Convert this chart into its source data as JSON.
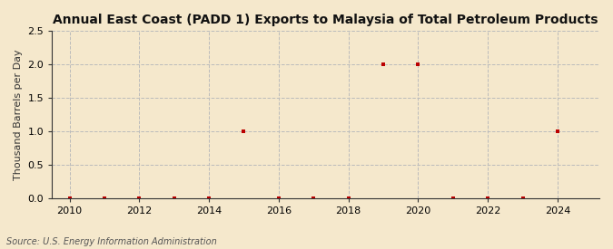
{
  "title": "Annual East Coast (PADD 1) Exports to Malaysia of Total Petroleum Products",
  "ylabel": "Thousand Barrels per Day",
  "source": "Source: U.S. Energy Information Administration",
  "background_color": "#f5e8cc",
  "years": [
    2010,
    2011,
    2012,
    2013,
    2014,
    2015,
    2016,
    2017,
    2018,
    2019,
    2020,
    2021,
    2022,
    2023,
    2024
  ],
  "values": [
    0.0,
    0.0,
    0.0,
    0.0,
    0.0,
    1.0,
    0.0,
    0.0,
    0.0,
    2.0,
    2.0,
    0.0,
    0.0,
    0.0,
    1.0
  ],
  "marker_color": "#bb0000",
  "marker_size": 3.5,
  "xlim": [
    2009.5,
    2025.2
  ],
  "ylim": [
    0,
    2.5
  ],
  "yticks": [
    0.0,
    0.5,
    1.0,
    1.5,
    2.0,
    2.5
  ],
  "xticks": [
    2010,
    2012,
    2014,
    2016,
    2018,
    2020,
    2022,
    2024
  ],
  "grid_color": "#bbbbbb",
  "title_fontsize": 10,
  "label_fontsize": 8,
  "tick_fontsize": 8,
  "source_fontsize": 7
}
